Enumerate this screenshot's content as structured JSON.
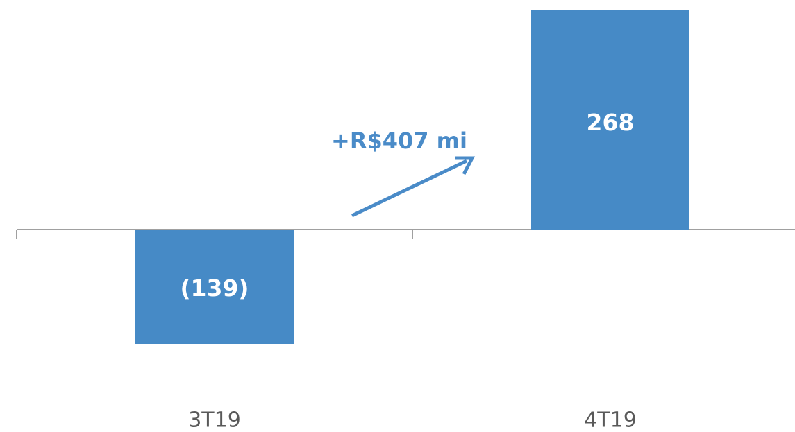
{
  "chart_data": {
    "type": "bar",
    "categories": [
      "3T19",
      "4T19"
    ],
    "values": [
      -139,
      268
    ],
    "value_labels": [
      "(139)",
      "268"
    ],
    "color": "#468ac6",
    "annotation": "+R$407 mi"
  }
}
